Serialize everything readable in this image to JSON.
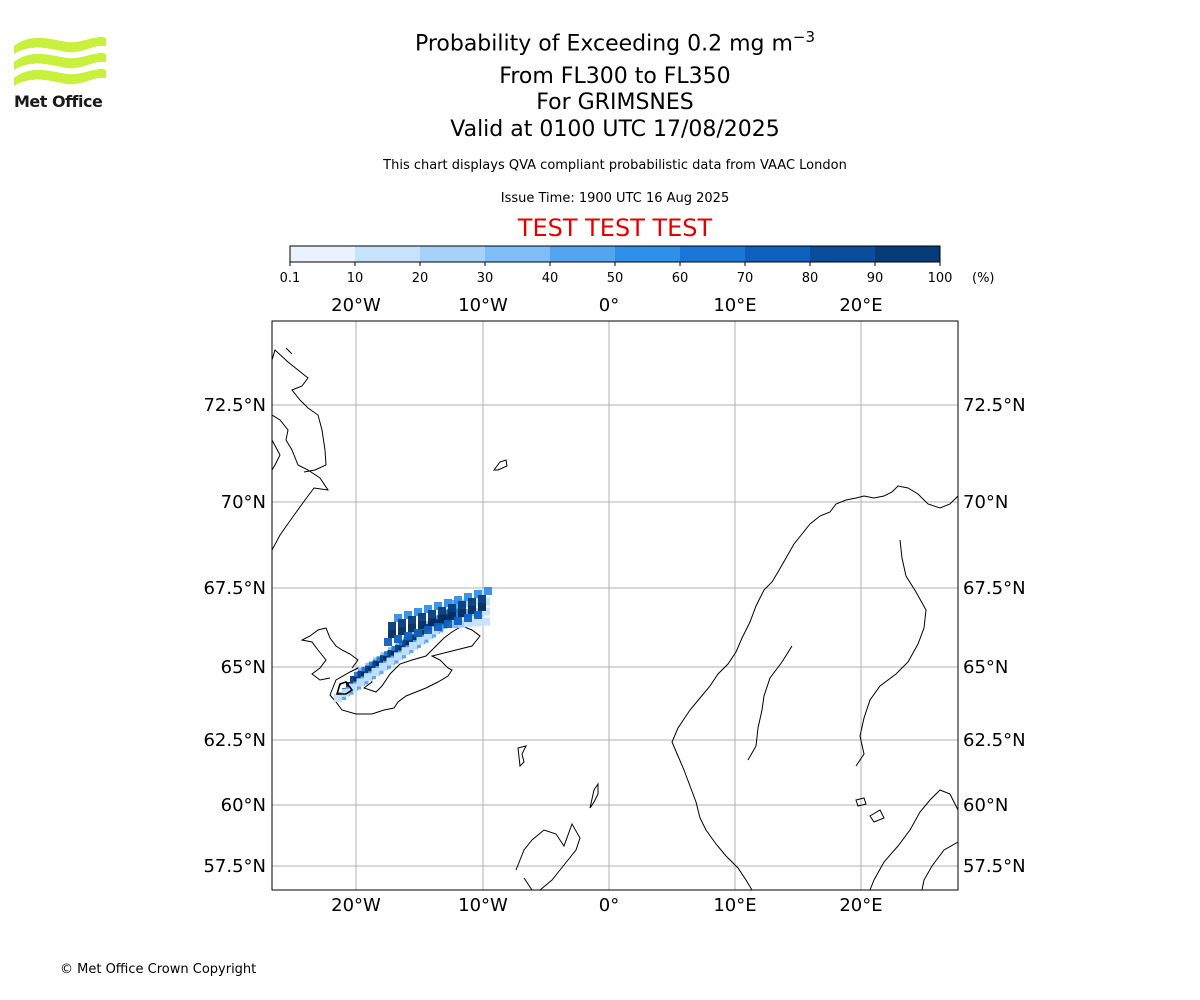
{
  "logo": {
    "brand": "Met Office",
    "icon": "met-office-wave-logo",
    "color": "#c8f03c"
  },
  "header": {
    "title_prefix": "Probability of Exceeding 0.2 mg m",
    "title_exponent": "−3",
    "level_range": "From FL300 to FL350",
    "volcano": "For GRIMSNES",
    "valid_time": "Valid at 0100 UTC 17/08/2025",
    "description": "This chart displays QVA compliant probabilistic data from VAAC London",
    "issue_time": "Issue Time: 1900 UTC 16 Aug 2025",
    "test_banner": "TEST TEST TEST"
  },
  "colorbar": {
    "ticks": [
      "0.1",
      "10",
      "20",
      "30",
      "40",
      "50",
      "60",
      "70",
      "80",
      "90",
      "100"
    ],
    "unit": "(%)",
    "colors": [
      "#eaf3fd",
      "#c7e2fb",
      "#a6d1f8",
      "#7ebdf5",
      "#53a5f0",
      "#2f90ea",
      "#1a77d8",
      "#0d60be",
      "#0a4d9a",
      "#063c7a",
      "#022c5c"
    ]
  },
  "map": {
    "lon_labels": [
      "20°W",
      "10°W",
      "0°",
      "10°E",
      "20°E"
    ],
    "lat_labels": [
      "72.5°N",
      "70°N",
      "67.5°N",
      "65°N",
      "62.5°N",
      "60°N",
      "57.5°N"
    ],
    "grid_color": "#b0b0b0",
    "plume_color": "#0a4d9a"
  },
  "footer": {
    "copyright": "© Met Office Crown Copyright"
  }
}
